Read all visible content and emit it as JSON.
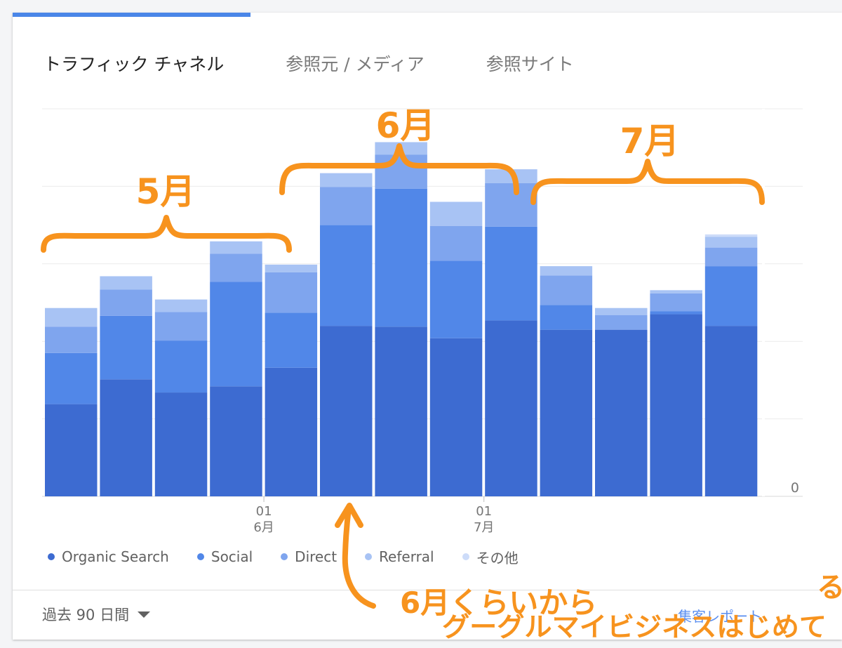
{
  "tabs": [
    {
      "label": "トラフィック チャネル",
      "active": true
    },
    {
      "label": "参照元 / メディア",
      "active": false
    },
    {
      "label": "参照サイト",
      "active": false
    }
  ],
  "period": {
    "label": "過去 90 日間"
  },
  "report_link": {
    "label": "集客レポート"
  },
  "colors": {
    "accent": "#4a86e8",
    "organic": "#3d6bd1",
    "social": "#5187e8",
    "direct": "#7fa5ee",
    "referral": "#a8c3f4",
    "other": "#cddcf9",
    "annotation": "#f7931e"
  },
  "annotations": {
    "may": "5月",
    "june": "6月",
    "july": "7月",
    "note_line1": "6月くらいから",
    "note_line2": "グーグルマイビジネスはじめて",
    "note_extra": "る"
  },
  "chart_data": {
    "type": "bar",
    "stacked": true,
    "categories": [
      "",
      "",
      "",
      "",
      "",
      "",
      "",
      "",
      "",
      "",
      "",
      "",
      "",
      ""
    ],
    "x_ticks": [
      {
        "index": 4,
        "label": "01",
        "sublabel": "6月"
      },
      {
        "index": 8,
        "label": "01",
        "sublabel": "7月"
      }
    ],
    "series": [
      {
        "name": "Organic Search",
        "values": [
          119,
          151,
          134,
          142,
          166,
          220,
          219,
          204,
          227,
          215,
          215,
          235,
          220,
          0
        ]
      },
      {
        "name": "Social",
        "values": [
          66,
          82,
          67,
          135,
          71,
          130,
          178,
          100,
          121,
          32,
          0,
          4,
          77,
          0
        ]
      },
      {
        "name": "Direct",
        "values": [
          34,
          34,
          37,
          36,
          52,
          49,
          44,
          45,
          56,
          38,
          19,
          23,
          24,
          0
        ]
      },
      {
        "name": "Referral",
        "values": [
          24,
          17,
          16,
          16,
          10,
          18,
          16,
          31,
          18,
          12,
          9,
          4,
          14,
          0
        ]
      },
      {
        "name": "その他",
        "values": [
          0,
          0,
          0,
          0,
          0,
          0,
          0,
          0,
          0,
          0,
          0,
          0,
          3,
          0
        ]
      }
    ],
    "ylim": [
      0,
      500
    ],
    "y_ticks": [
      "0"
    ],
    "grid": true,
    "legend_position": "bottom"
  }
}
